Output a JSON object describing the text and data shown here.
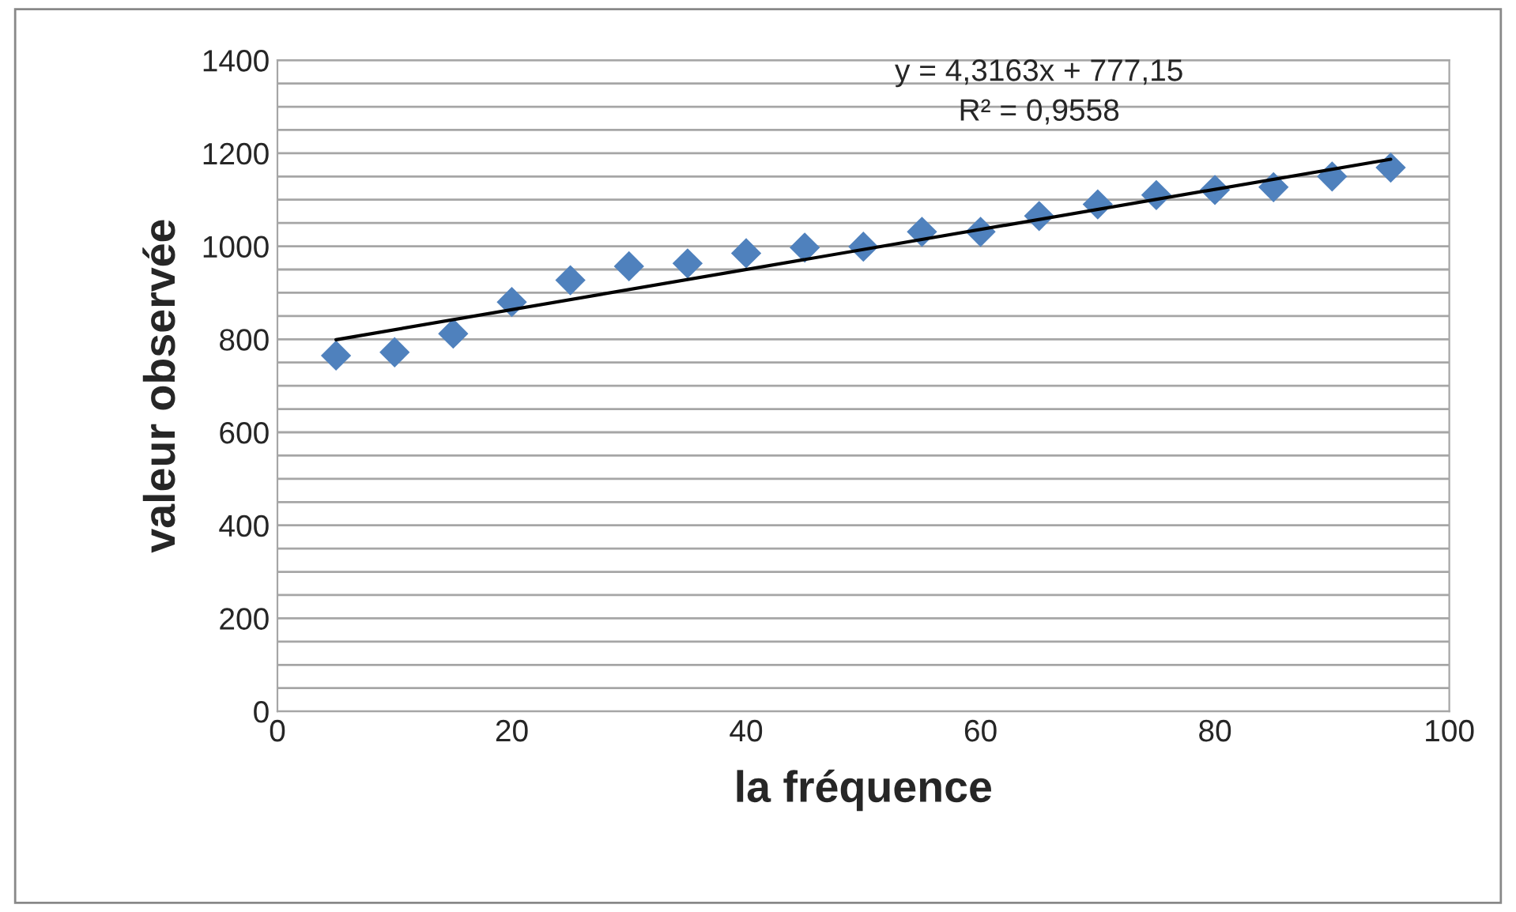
{
  "chart_data": {
    "type": "scatter",
    "xlabel": "la fréquence",
    "ylabel": "valeur observée",
    "xlim": [
      0,
      100
    ],
    "xticks": [
      0,
      20,
      40,
      60,
      80,
      100
    ],
    "ylim": [
      0,
      1400
    ],
    "yticks": [
      0,
      {
        "value": 50,
        "label": null
      },
      200,
      {
        "value": 250,
        "label": null
      },
      {
        "value": 100,
        "label": null
      },
      {
        "value": 150,
        "label": null
      },
      {
        "value": 300,
        "label": null
      },
      {
        "value": 350,
        "label": null
      },
      400,
      {
        "value": 450,
        "label": null
      },
      {
        "value": 500,
        "label": null
      },
      {
        "value": 550,
        "label": null
      },
      600,
      {
        "value": 650,
        "label": null
      },
      {
        "value": 700,
        "label": null
      },
      {
        "value": 750,
        "label": null
      },
      800,
      {
        "value": 850,
        "label": null
      },
      {
        "value": 900,
        "label": null
      },
      {
        "value": 950,
        "label": null
      },
      1000,
      {
        "value": 1050,
        "label": null
      },
      {
        "value": 1100,
        "label": null
      },
      {
        "value": 1150,
        "label": null
      },
      1200,
      {
        "value": 1250,
        "label": null
      },
      {
        "value": 1300,
        "label": null
      },
      {
        "value": 1350,
        "label": null
      },
      1400
    ],
    "grid": "y",
    "marker": "diamond",
    "series": [
      {
        "color": "#4f81bd",
        "x": [
          5,
          10,
          15,
          20,
          25,
          30,
          35,
          40,
          45,
          50,
          55,
          60,
          65,
          70,
          75,
          80,
          85,
          90,
          95
        ],
        "values": [
          765,
          772,
          812,
          880,
          927,
          957,
          963,
          985,
          997,
          999,
          1031,
          1031,
          1065,
          1090,
          1110,
          1121,
          1127,
          1150,
          1169
        ]
      },
      {
        "type": "line",
        "color": "#000000",
        "marker": "none",
        "x": [
          5,
          95
        ],
        "values": [
          799,
          1187
        ]
      }
    ],
    "annotations": [
      "y = 4,3163x + 777,15\nR² = 0,9558"
    ]
  }
}
